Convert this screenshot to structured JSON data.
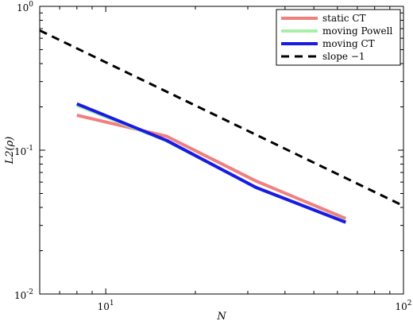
{
  "chart_data": {
    "type": "line",
    "title": "",
    "xlabel": "N",
    "ylabel": "L2(ρ)",
    "xscale": "log",
    "yscale": "log",
    "xlim": [
      6,
      100
    ],
    "ylim": [
      0.01,
      1
    ],
    "grid": false,
    "legend_position": "top-right",
    "x_ticks": [
      {
        "value": 10,
        "label": "10",
        "exp": "1"
      },
      {
        "value": 100,
        "label": "10",
        "exp": "2"
      }
    ],
    "y_ticks": [
      {
        "value": 0.01,
        "label": "10",
        "exp": "-2"
      },
      {
        "value": 0.1,
        "label": "10",
        "exp": "-1"
      },
      {
        "value": 1,
        "label": "10",
        "exp": "0"
      }
    ],
    "series": [
      {
        "name": "static CT",
        "color": "#f08080",
        "dash": "",
        "width": 4,
        "x": [
          8,
          16,
          32,
          64
        ],
        "y": [
          0.175,
          0.125,
          0.061,
          0.0335
        ]
      },
      {
        "name": "moving Powell",
        "color": "#a8f0a8",
        "dash": "",
        "width": 4,
        "x": [
          8,
          16,
          32,
          64
        ],
        "y": [
          0.205,
          0.116,
          0.055,
          0.0318
        ]
      },
      {
        "name": "moving CT",
        "color": "#1a1ae6",
        "dash": "",
        "width": 4,
        "x": [
          8,
          16,
          32,
          64
        ],
        "y": [
          0.21,
          0.117,
          0.055,
          0.0315
        ]
      },
      {
        "name": "slope −1",
        "color": "#000000",
        "dash": "10,7",
        "width": 3,
        "x": [
          6,
          100
        ],
        "y": [
          0.68,
          0.041
        ]
      }
    ]
  }
}
